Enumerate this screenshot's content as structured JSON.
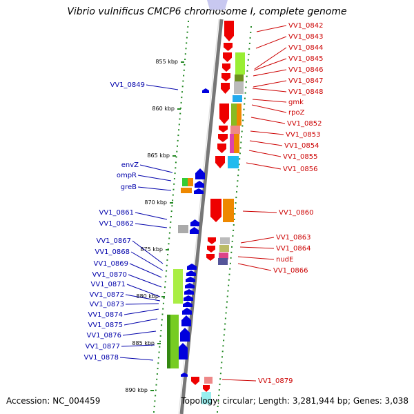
{
  "title": "Vibrio vulnificus CMCP6 chromosome I, complete genome",
  "footer": {
    "accession": "Accession: NC_004459",
    "summary": "Topology: circular; Length: 3,281,944 bp; Genes: 3,038"
  },
  "colors": {
    "forward_gene": "#ee0000",
    "reverse_gene": "#0000dd",
    "forward_label": "#cc0000",
    "reverse_label": "#0000aa",
    "backbone": "#888888",
    "tick": "#228822"
  },
  "kbp_ticks": [
    "855 kbp",
    "860 kbp",
    "865 kbp",
    "870 kbp",
    "875 kbp",
    "880 kbp",
    "885 kbp",
    "890 kbp"
  ],
  "forward_genes": [
    "VV1_0842",
    "VV1_0843",
    "VV1_0844",
    "VV1_0845",
    "VV1_0846",
    "VV1_0847",
    "VV1_0848",
    "gmk",
    "rpoZ",
    "VV1_0852",
    "VV1_0853",
    "VV1_0854",
    "VV1_0855",
    "VV1_0856",
    "VV1_0860",
    "VV1_0863",
    "VV1_0864",
    "nudE",
    "VV1_0866",
    "VV1_0879"
  ],
  "reverse_genes": [
    "VV1_0849",
    "envZ",
    "ompR",
    "greB",
    "VV1_0861",
    "VV1_0862",
    "VV1_0867",
    "VV1_0868",
    "VV1_0869",
    "VV1_0870",
    "VV1_0871",
    "VV1_0872",
    "VV1_0873",
    "VV1_0874",
    "VV1_0875",
    "VV1_0876",
    "VV1_0877",
    "VV1_0878"
  ]
}
